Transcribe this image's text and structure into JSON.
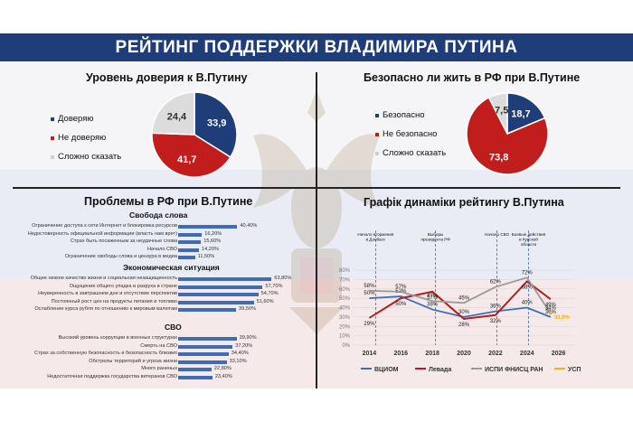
{
  "header": {
    "title": "РЕЙТИНГ ПОДДЕРЖКИ ВЛАДИМИРА ПУТИНА"
  },
  "colors": {
    "navy": "#1f3d78",
    "red": "#c11d1d",
    "gray": "#c8c8c8",
    "bar": "#3f6db5",
    "orange": "#f2b400"
  },
  "trust_panel": {
    "title": "Уровень доверия к В.Путину",
    "chart_data": {
      "type": "pie",
      "labels": [
        "Доверяю",
        "Не доверяю",
        "Сложно сказать"
      ],
      "values": [
        33.9,
        41.7,
        24.4
      ],
      "value_labels": [
        "33,9",
        "41,7",
        "24,4"
      ],
      "colors": [
        "#1f3d78",
        "#c11d1d",
        "#dcdcdc"
      ]
    }
  },
  "safety_panel": {
    "title": "Безопасно ли жить в РФ при В.Путине",
    "chart_data": {
      "type": "pie",
      "labels": [
        "Безопасно",
        "Не безопасно",
        "Сложно сказать"
      ],
      "values": [
        18.7,
        73.8,
        7.5
      ],
      "value_labels": [
        "18,7",
        "73,8",
        "7,5"
      ],
      "colors": [
        "#1f3d78",
        "#c11d1d",
        "#dcdcdc"
      ]
    }
  },
  "problems_panel": {
    "title": "Проблемы в РФ при В.Путине",
    "chart_data": {
      "type": "bar",
      "groups": [
        {
          "name": "Свобода слова",
          "items": [
            {
              "label": "Ограничение доступа к сети Интернет и блокировка ресурсов",
              "value": 40.4,
              "value_label": "40,40%"
            },
            {
              "label": "Недостоверность официальной информации (власть нам врет)",
              "value": 16.2,
              "value_label": "16,20%"
            },
            {
              "label": "Страх быть посаженным за неудачные слова",
              "value": 15.6,
              "value_label": "15,60%"
            },
            {
              "label": "Начало СВО",
              "value": 14.2,
              "value_label": "14,20%"
            },
            {
              "label": "Ограничение свободы слова и цензура в медиа",
              "value": 11.5,
              "value_label": "11,50%"
            }
          ]
        },
        {
          "name": "Экономическая ситуация",
          "items": [
            {
              "label": "Общее низкое качество жизни и социальная незащищенность",
              "value": 63.8,
              "value_label": "63,80%"
            },
            {
              "label": "Ощущение общего упадка и разруха в стране",
              "value": 57.7,
              "value_label": "57,70%"
            },
            {
              "label": "Неуверенность в завтрашнем дне и отсутствие перспектив",
              "value": 54.7,
              "value_label": "54,70%"
            },
            {
              "label": "Постоянный рост цен на продукты питания и топливо",
              "value": 51.6,
              "value_label": "51,60%"
            },
            {
              "label": "Ослабление курса рубля по отношению к мировым валютам",
              "value": 39.5,
              "value_label": "39,50%"
            }
          ]
        },
        {
          "name": "СВО",
          "items": [
            {
              "label": "Высокий уровень коррупции в военных структурах",
              "value": 39.9,
              "value_label": "39,90%"
            },
            {
              "label": "Смерть на СВО",
              "value": 37.2,
              "value_label": "37,20%"
            },
            {
              "label": "Страх за собственную безопасность и безопасность близких",
              "value": 34.4,
              "value_label": "34,40%"
            },
            {
              "label": "Обстрелы территорий и угроза жизни",
              "value": 33.1,
              "value_label": "33,10%"
            },
            {
              "label": "Много раненых",
              "value": 22.8,
              "value_label": "22,80%"
            },
            {
              "label": "Недостаточная поддержка государства ветеранов СВО",
              "value": 23.4,
              "value_label": "23,40%"
            }
          ]
        }
      ]
    }
  },
  "dynamics_panel": {
    "title": "Графік динаміки рейтингу В.Путина",
    "chart_data": {
      "type": "line",
      "xlim": [
        2013,
        2027
      ],
      "ylim": [
        0,
        80
      ],
      "x_ticks": [
        "2014",
        "2016",
        "2018",
        "2020",
        "2022",
        "2024",
        "2026"
      ],
      "y_ticks": [
        "0%",
        "10%",
        "20%",
        "30%",
        "40%",
        "50%",
        "60%",
        "70%",
        "80%"
      ],
      "events": [
        {
          "x": 2014.4,
          "label": "Начало вторжения в Донбасс"
        },
        {
          "x": 2018.2,
          "label": "Выборы президента РФ"
        },
        {
          "x": 2022.1,
          "label": "Начало СВО"
        },
        {
          "x": 2024.1,
          "label": "Боевые действия в Курской области"
        }
      ],
      "series": [
        {
          "name": "ВЦИОМ",
          "color": "#3f6db5",
          "points": [
            [
              2014,
              50
            ],
            [
              2016,
              52
            ],
            [
              2018,
              38
            ],
            [
              2020,
              30
            ],
            [
              2022,
              36
            ],
            [
              2024,
              40
            ],
            [
              2025.5,
              30
            ]
          ],
          "labels": [
            "50%",
            "52%",
            "38%",
            "30%",
            "36%",
            "40%",
            "30%"
          ]
        },
        {
          "name": "Левада",
          "color": "#b21f1f",
          "points": [
            [
              2014,
              29
            ],
            [
              2016,
              50
            ],
            [
              2018,
              57
            ],
            [
              2020,
              28
            ],
            [
              2022,
              32
            ],
            [
              2024,
              68
            ],
            [
              2025.5,
              49
            ]
          ],
          "labels": [
            "29%",
            "50%",
            "57%",
            "28%",
            "32%",
            "68%",
            "49%"
          ]
        },
        {
          "name": "ИСПИ ФНИСЦ РАН",
          "color": "#9a9a9a",
          "points": [
            [
              2014,
              58
            ],
            [
              2016,
              57
            ],
            [
              2018,
              47
            ],
            [
              2020,
              45
            ],
            [
              2022,
              62
            ],
            [
              2024,
              72
            ],
            [
              2025.5,
              34
            ]
          ],
          "labels": [
            "58%",
            "57%",
            "47%",
            "45%",
            "62%",
            "72%",
            "34%"
          ]
        },
        {
          "name": "УСП",
          "color": "#f2b400",
          "points": [
            [
              2025.5,
              33.9
            ]
          ],
          "labels": [
            "33,9%"
          ]
        }
      ]
    }
  }
}
